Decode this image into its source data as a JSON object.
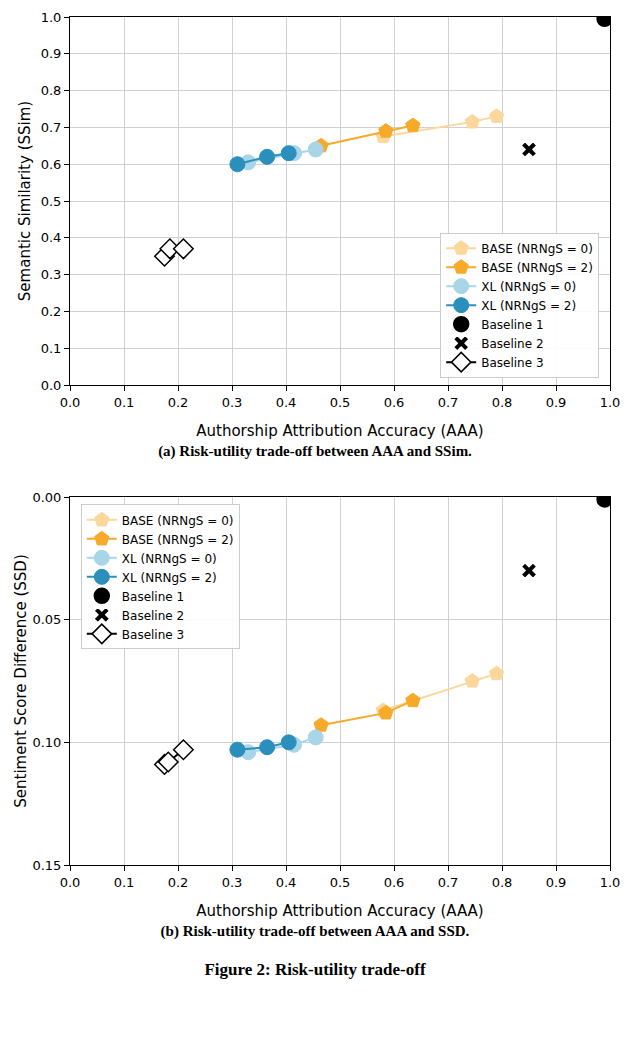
{
  "chart_data": [
    {
      "type": "scatter",
      "x_label": "Authorship Attribution Accuracy (AAA)",
      "y_label": "Semantic Similarity (SSim)",
      "caption": "(a) Risk-utility trade-off between AAA and SSim.",
      "xlim": [
        0,
        1
      ],
      "ylim": [
        0,
        1
      ],
      "xticks": [
        {
          "value": 0,
          "label": "0.0"
        },
        {
          "value": 0.1,
          "label": "0.1"
        },
        {
          "value": 0.2,
          "label": "0.2"
        },
        {
          "value": 0.3,
          "label": "0.3"
        },
        {
          "value": 0.4,
          "label": "0.4"
        },
        {
          "value": 0.5,
          "label": "0.5"
        },
        {
          "value": 0.6,
          "label": "0.6"
        },
        {
          "value": 0.7,
          "label": "0.7"
        },
        {
          "value": 0.8,
          "label": "0.8"
        },
        {
          "value": 0.9,
          "label": "0.9"
        },
        {
          "value": 1,
          "label": "1.0"
        }
      ],
      "yticks": [
        {
          "value": 0,
          "label": "0.0"
        },
        {
          "value": 0.1,
          "label": "0.1"
        },
        {
          "value": 0.2,
          "label": "0.2"
        },
        {
          "value": 0.3,
          "label": "0.3"
        },
        {
          "value": 0.4,
          "label": "0.4"
        },
        {
          "value": 0.5,
          "label": "0.5"
        },
        {
          "value": 0.6,
          "label": "0.6"
        },
        {
          "value": 0.7,
          "label": "0.7"
        },
        {
          "value": 0.8,
          "label": "0.8"
        },
        {
          "value": 0.9,
          "label": "0.9"
        },
        {
          "value": 1,
          "label": "1.0"
        }
      ],
      "grid": true,
      "legend": "lower right",
      "series": [
        {
          "name": "BASE (NRNgS = 0)",
          "color": "#fcd79b",
          "marker": "pentagon",
          "line_style": "solid",
          "x": [
            0.58,
            0.745,
            0.79
          ],
          "values": [
            0.675,
            0.715,
            0.73
          ]
        },
        {
          "name": "BASE (NRNgS = 2)",
          "color": "#f7a928",
          "marker": "pentagon",
          "line_style": "solid",
          "x": [
            0.465,
            0.585,
            0.635
          ],
          "values": [
            0.65,
            0.69,
            0.705
          ]
        },
        {
          "name": "XL (NRNgS = 0)",
          "color": "#a8d5e8",
          "marker": "circle",
          "line_style": "solid",
          "x": [
            0.33,
            0.415,
            0.455
          ],
          "values": [
            0.605,
            0.63,
            0.64
          ]
        },
        {
          "name": "XL (NRNgS = 2)",
          "color": "#2b8fbe",
          "marker": "circle",
          "line_style": "solid",
          "x": [
            0.31,
            0.365,
            0.405
          ],
          "values": [
            0.6,
            0.62,
            0.63
          ]
        },
        {
          "name": "Baseline 1",
          "color": "#000000",
          "marker": "circle",
          "line_style": "none",
          "x": [
            0.99
          ],
          "values": [
            0.995
          ]
        },
        {
          "name": "Baseline 2",
          "color": "#000000",
          "marker": "x",
          "line_style": "none",
          "x": [
            0.85
          ],
          "values": [
            0.64
          ]
        },
        {
          "name": "Baseline 3",
          "color": "#000000",
          "marker": "diamond",
          "line_style": "solid",
          "x": [
            0.175,
            0.185,
            0.21
          ],
          "values": [
            0.35,
            0.37,
            0.37
          ]
        }
      ]
    },
    {
      "type": "scatter",
      "x_label": "Authorship Attribution Accuracy (AAA)",
      "y_label": "Sentiment Score Difference (SSD)",
      "caption": "(b) Risk-utility trade-off between AAA and SSD.",
      "xlim": [
        0,
        1
      ],
      "ylim": [
        0.15,
        0
      ],
      "xticks": [
        {
          "value": 0,
          "label": "0.0"
        },
        {
          "value": 0.1,
          "label": "0.1"
        },
        {
          "value": 0.2,
          "label": "0.2"
        },
        {
          "value": 0.3,
          "label": "0.3"
        },
        {
          "value": 0.4,
          "label": "0.4"
        },
        {
          "value": 0.5,
          "label": "0.5"
        },
        {
          "value": 0.6,
          "label": "0.6"
        },
        {
          "value": 0.7,
          "label": "0.7"
        },
        {
          "value": 0.8,
          "label": "0.8"
        },
        {
          "value": 0.9,
          "label": "0.9"
        },
        {
          "value": 1,
          "label": "1.0"
        }
      ],
      "yticks": [
        {
          "value": 0,
          "label": "0.00"
        },
        {
          "value": 0.05,
          "label": "0.05"
        },
        {
          "value": 0.1,
          "label": "0.10"
        },
        {
          "value": 0.15,
          "label": "0.15"
        }
      ],
      "grid": true,
      "legend": "upper left",
      "series": [
        {
          "name": "BASE (NRNgS = 0)",
          "color": "#fcd79b",
          "marker": "pentagon",
          "line_style": "solid",
          "x": [
            0.58,
            0.745,
            0.79
          ],
          "values": [
            0.087,
            0.075,
            0.072
          ]
        },
        {
          "name": "BASE (NRNgS = 2)",
          "color": "#f7a928",
          "marker": "pentagon",
          "line_style": "solid",
          "x": [
            0.465,
            0.585,
            0.635
          ],
          "values": [
            0.093,
            0.088,
            0.083
          ]
        },
        {
          "name": "XL (NRNgS = 0)",
          "color": "#a8d5e8",
          "marker": "circle",
          "line_style": "solid",
          "x": [
            0.33,
            0.415,
            0.455
          ],
          "values": [
            0.104,
            0.101,
            0.098
          ]
        },
        {
          "name": "XL (NRNgS = 2)",
          "color": "#2b8fbe",
          "marker": "circle",
          "line_style": "solid",
          "x": [
            0.31,
            0.365,
            0.405
          ],
          "values": [
            0.103,
            0.102,
            0.1
          ]
        },
        {
          "name": "Baseline 1",
          "color": "#000000",
          "marker": "circle",
          "line_style": "none",
          "x": [
            0.99
          ],
          "values": [
            0.001
          ]
        },
        {
          "name": "Baseline 2",
          "color": "#000000",
          "marker": "x",
          "line_style": "none",
          "x": [
            0.85
          ],
          "values": [
            0.03
          ]
        },
        {
          "name": "Baseline 3",
          "color": "#000000",
          "marker": "diamond",
          "line_style": "solid",
          "x": [
            0.175,
            0.182,
            0.21
          ],
          "values": [
            0.109,
            0.108,
            0.103
          ]
        }
      ]
    }
  ],
  "figure_caption": "Figure 2: Risk-utility trade-off"
}
